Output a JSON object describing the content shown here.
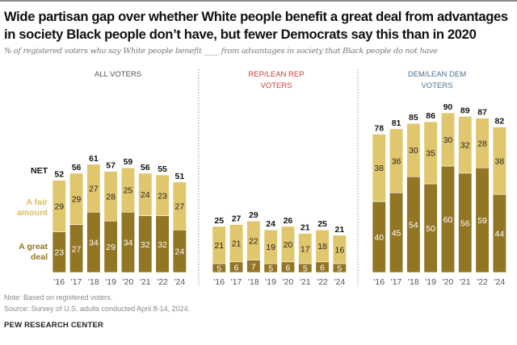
{
  "title": "Wide partisan gap over whether White people benefit a great deal from advantages in society Black people don’t have, but fewer Democrats say this than in 2020",
  "subtitle": "% of registered voters who say White people benefit ____ from advantages in society that Black people do not have",
  "legend": {
    "net": "NET",
    "fair": "A fair amount",
    "great": "A great deal"
  },
  "colors": {
    "great": "#937624",
    "fair": "#e0c76d",
    "net_text": "#111111",
    "rep_title": "#c8403a",
    "dem_title": "#4e6f95",
    "all_title": "#555555"
  },
  "notes": {
    "note": "Note: Based on registered voters.",
    "source": "Source: Survey of U.S. adults conducted April 8-14, 2024."
  },
  "brand": "PEW RESEARCH CENTER",
  "chart_data": [
    {
      "type": "bar",
      "stacked": true,
      "title": "ALL VOTERS",
      "categories": [
        "'16",
        "'17",
        "'18",
        "'19",
        "'20",
        "'21",
        "'22",
        "'24"
      ],
      "series": [
        {
          "name": "A great deal",
          "values": [
            23,
            27,
            34,
            29,
            34,
            32,
            32,
            24
          ]
        },
        {
          "name": "A fair amount",
          "values": [
            29,
            29,
            27,
            28,
            25,
            24,
            23,
            27
          ]
        }
      ],
      "net": [
        52,
        56,
        61,
        57,
        59,
        56,
        55,
        51
      ]
    },
    {
      "type": "bar",
      "stacked": true,
      "title": "REP/LEAN REP VOTERS",
      "categories": [
        "'16",
        "'17",
        "'18",
        "'19",
        "'20",
        "'21",
        "'22",
        "'24"
      ],
      "series": [
        {
          "name": "A great deal",
          "values": [
            5,
            6,
            7,
            5,
            6,
            5,
            6,
            5
          ]
        },
        {
          "name": "A fair amount",
          "values": [
            21,
            21,
            22,
            19,
            20,
            17,
            18,
            16
          ]
        }
      ],
      "net": [
        25,
        27,
        29,
        24,
        26,
        21,
        25,
        21
      ]
    },
    {
      "type": "bar",
      "stacked": true,
      "title": "DEM/LEAN DEM VOTERS",
      "categories": [
        "'16",
        "'17",
        "'18",
        "'19",
        "'20",
        "'21",
        "'22",
        "'24"
      ],
      "series": [
        {
          "name": "A great deal",
          "values": [
            40,
            45,
            54,
            50,
            60,
            56,
            59,
            44
          ]
        },
        {
          "name": "A fair amount",
          "values": [
            38,
            36,
            30,
            35,
            30,
            32,
            28,
            38
          ]
        }
      ],
      "net": [
        78,
        81,
        85,
        86,
        90,
        89,
        87,
        82
      ]
    }
  ]
}
